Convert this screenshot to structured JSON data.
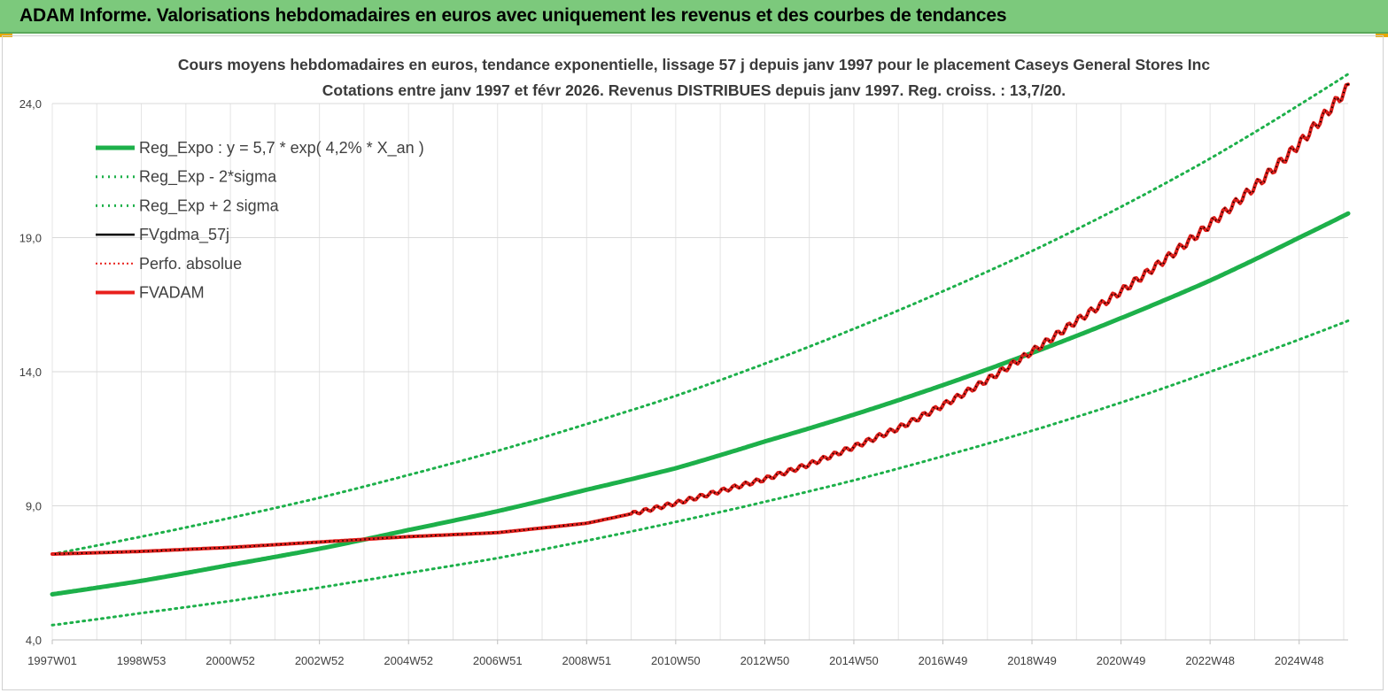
{
  "banner": {
    "title": "ADAM Informe. Valorisations hebdomadaires en euros avec uniquement les revenus et des courbes de tendances"
  },
  "colors": {
    "banner_bg": "#7cc97c",
    "reg_expo": "#1db04a",
    "sigma_lines": "#1db04a",
    "fvgdma": "#000000",
    "perfo": "#e8201c",
    "fvadam": "#e8201c",
    "grid": "#e4e4e4"
  },
  "chart_data": {
    "type": "line",
    "title_line1": "Cours moyens hebdomadaires en euros, tendance exponentielle, lissage 57 j depuis janv 1997 pour le placement Caseys General Stores Inc",
    "title_line2": "Cotations entre janv 1997 et févr 2026. Revenus DISTRIBUES depuis janv 1997. Reg. croiss. : 13,7/20.",
    "xlabel": "",
    "ylabel": "",
    "ylim": [
      4.0,
      24.0
    ],
    "yticks": [
      "4,0",
      "9,0",
      "14,0",
      "19,0",
      "24,0"
    ],
    "xticks": [
      "1997W01",
      "1998W53",
      "2000W52",
      "2002W52",
      "2004W52",
      "2006W51",
      "2008W51",
      "2010W50",
      "2012W50",
      "2014W50",
      "2016W49",
      "2018W49",
      "2020W49",
      "2022W48",
      "2024W48"
    ],
    "x_range_years": [
      1997.0,
      2026.1
    ],
    "grid": true,
    "legend_position": "top-left",
    "legend": [
      {
        "label": "Reg_Expo : y = 5,7 * exp( 4,2% *  X_an )",
        "style": "solid-thick",
        "color": "#1db04a"
      },
      {
        "label": "Reg_Exp - 2*sigma",
        "style": "dotted",
        "color": "#1db04a"
      },
      {
        "label": "Reg_Exp + 2 sigma",
        "style": "dotted",
        "color": "#1db04a"
      },
      {
        "label": "FVgdma_57j",
        "style": "solid",
        "color": "#000000"
      },
      {
        "label": "Perfo. absolue",
        "style": "dotted",
        "color": "#e8201c"
      },
      {
        "label": "FVADAM",
        "style": "solid-thick",
        "color": "#e8201c"
      }
    ],
    "series": [
      {
        "name": "Reg_Expo : y = 5,7 * exp( 4,2% *  X_an )",
        "x": [
          1997,
          1999,
          2001,
          2003,
          2005,
          2007,
          2009,
          2011,
          2013,
          2015,
          2017,
          2019,
          2021,
          2023,
          2025,
          2026.1
        ],
        "values": [
          5.7,
          6.2,
          6.8,
          7.4,
          8.1,
          8.8,
          9.6,
          10.4,
          11.4,
          12.4,
          13.5,
          14.7,
          16.0,
          17.4,
          19.0,
          19.9
        ]
      },
      {
        "name": "Reg_Exp - 2*sigma",
        "x": [
          1997,
          1999,
          2001,
          2003,
          2005,
          2007,
          2009,
          2011,
          2013,
          2015,
          2017,
          2019,
          2021,
          2023,
          2025,
          2026.1
        ],
        "values": [
          4.55,
          5.0,
          5.45,
          5.95,
          6.5,
          7.05,
          7.7,
          8.4,
          9.15,
          9.95,
          10.85,
          11.8,
          12.85,
          14.0,
          15.2,
          15.9
        ]
      },
      {
        "name": "Reg_Exp + 2 sigma",
        "x": [
          1997,
          1999,
          2001,
          2003,
          2005,
          2007,
          2009,
          2011,
          2013,
          2015,
          2017,
          2019,
          2021,
          2023,
          2025,
          2026.1
        ],
        "values": [
          7.2,
          7.85,
          8.55,
          9.3,
          10.15,
          11.05,
          12.05,
          13.1,
          14.3,
          15.6,
          17.0,
          18.5,
          20.15,
          21.95,
          23.95,
          25.1
        ]
      },
      {
        "name": "FVgdma_57j",
        "x": [
          1997,
          1999,
          2001,
          2003,
          2005,
          2007,
          2009,
          2010,
          2011,
          2012,
          2013,
          2014,
          2015,
          2016,
          2017,
          2018,
          2019,
          2020,
          2021,
          2022,
          2023,
          2024,
          2025,
          2026.1
        ],
        "values": [
          7.2,
          7.3,
          7.45,
          7.65,
          7.85,
          8.0,
          8.35,
          8.7,
          9.1,
          9.55,
          10.0,
          10.55,
          11.2,
          11.9,
          12.75,
          13.7,
          14.75,
          15.9,
          17.0,
          18.2,
          19.5,
          20.9,
          22.5,
          24.6
        ]
      },
      {
        "name": "Perfo. absolue",
        "x": [
          1997,
          1999,
          2001,
          2003,
          2005,
          2007,
          2009,
          2010,
          2011,
          2012,
          2013,
          2014,
          2015,
          2016,
          2017,
          2018,
          2019,
          2020,
          2021,
          2022,
          2023,
          2024,
          2025,
          2026.1
        ],
        "values": [
          7.2,
          7.3,
          7.45,
          7.65,
          7.85,
          8.0,
          8.35,
          8.7,
          9.1,
          9.55,
          10.0,
          10.55,
          11.2,
          11.9,
          12.75,
          13.7,
          14.75,
          15.9,
          17.0,
          18.2,
          19.5,
          20.9,
          22.5,
          24.6
        ]
      },
      {
        "name": "FVADAM",
        "x": [
          1997,
          1999,
          2001,
          2003,
          2005,
          2007,
          2009,
          2010,
          2011,
          2012,
          2013,
          2014,
          2015,
          2016,
          2017,
          2018,
          2019,
          2020,
          2021,
          2022,
          2023,
          2024,
          2025,
          2026.1
        ],
        "values": [
          7.2,
          7.3,
          7.45,
          7.65,
          7.85,
          8.0,
          8.35,
          8.7,
          9.1,
          9.55,
          10.0,
          10.55,
          11.2,
          11.9,
          12.75,
          13.7,
          14.75,
          15.9,
          17.0,
          18.2,
          19.5,
          20.9,
          22.5,
          24.6
        ]
      }
    ]
  }
}
